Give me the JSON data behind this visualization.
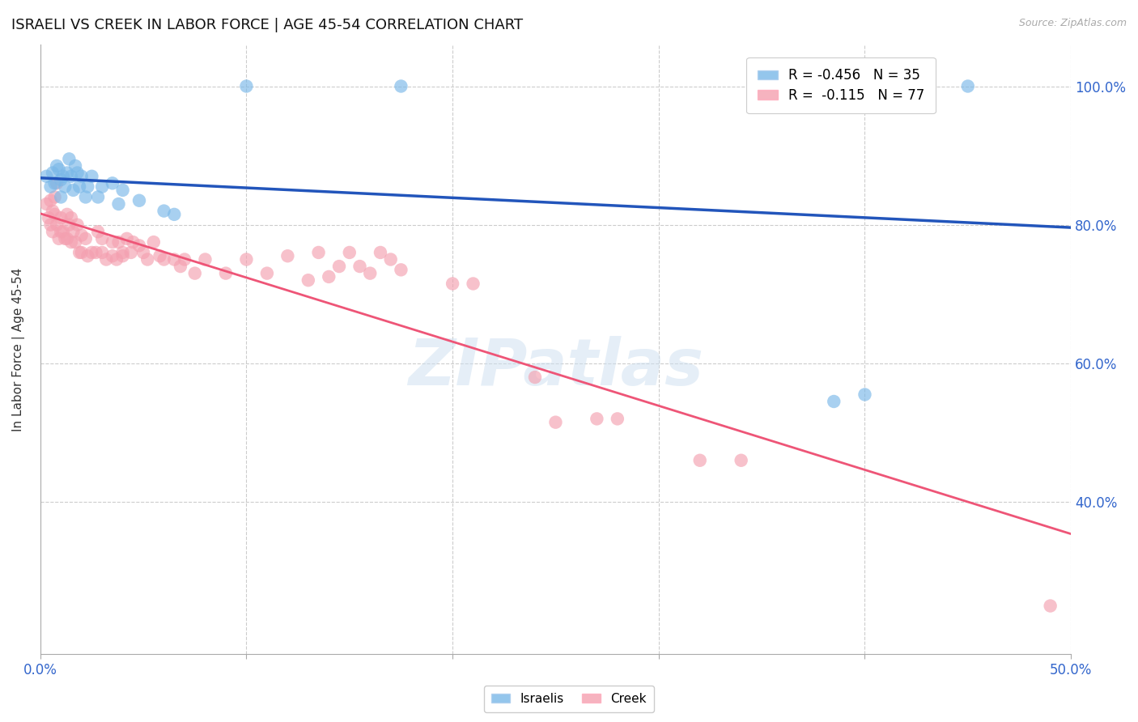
{
  "title": "ISRAELI VS CREEK IN LABOR FORCE | AGE 45-54 CORRELATION CHART",
  "source_text": "Source: ZipAtlas.com",
  "ylabel": "In Labor Force | Age 45-54",
  "xlim": [
    0.0,
    0.5
  ],
  "ylim": [
    0.18,
    1.06
  ],
  "ytick_vals": [
    0.4,
    0.6,
    0.8,
    1.0
  ],
  "ytick_labels": [
    "40.0%",
    "60.0%",
    "80.0%",
    "100.0%"
  ],
  "xtick_vals": [
    0.0,
    0.1,
    0.2,
    0.3,
    0.4,
    0.5
  ],
  "xtick_labels": [
    "0.0%",
    "",
    "",
    "",
    "",
    "50.0%"
  ],
  "grid_color": "#cccccc",
  "background_color": "#ffffff",
  "watermark_text": "ZIPatlas",
  "israeli_color": "#7ab8e8",
  "creek_color": "#f4a0b0",
  "israeli_line_color": "#2255bb",
  "creek_line_color": "#ee5577",
  "israeli_label": "R = -0.456   N = 35",
  "creek_label": "R =  -0.115   N = 77",
  "bottom_label_israeli": "Israelis",
  "bottom_label_creek": "Creek",
  "israeli_points": [
    [
      0.003,
      0.87
    ],
    [
      0.005,
      0.855
    ],
    [
      0.006,
      0.875
    ],
    [
      0.007,
      0.86
    ],
    [
      0.008,
      0.885
    ],
    [
      0.009,
      0.88
    ],
    [
      0.01,
      0.865
    ],
    [
      0.01,
      0.84
    ],
    [
      0.011,
      0.87
    ],
    [
      0.012,
      0.855
    ],
    [
      0.013,
      0.875
    ],
    [
      0.014,
      0.895
    ],
    [
      0.015,
      0.87
    ],
    [
      0.016,
      0.85
    ],
    [
      0.017,
      0.885
    ],
    [
      0.018,
      0.875
    ],
    [
      0.019,
      0.855
    ],
    [
      0.02,
      0.87
    ],
    [
      0.022,
      0.84
    ],
    [
      0.023,
      0.855
    ],
    [
      0.025,
      0.87
    ],
    [
      0.028,
      0.84
    ],
    [
      0.03,
      0.855
    ],
    [
      0.035,
      0.86
    ],
    [
      0.038,
      0.83
    ],
    [
      0.04,
      0.85
    ],
    [
      0.048,
      0.835
    ],
    [
      0.06,
      0.82
    ],
    [
      0.065,
      0.815
    ],
    [
      0.1,
      1.0
    ],
    [
      0.175,
      1.0
    ],
    [
      0.385,
      0.545
    ],
    [
      0.4,
      0.555
    ],
    [
      0.43,
      1.0
    ],
    [
      0.45,
      1.0
    ]
  ],
  "creek_points": [
    [
      0.003,
      0.83
    ],
    [
      0.004,
      0.81
    ],
    [
      0.005,
      0.835
    ],
    [
      0.005,
      0.8
    ],
    [
      0.006,
      0.82
    ],
    [
      0.006,
      0.79
    ],
    [
      0.007,
      0.815
    ],
    [
      0.007,
      0.84
    ],
    [
      0.008,
      0.86
    ],
    [
      0.008,
      0.8
    ],
    [
      0.009,
      0.78
    ],
    [
      0.01,
      0.79
    ],
    [
      0.01,
      0.81
    ],
    [
      0.011,
      0.79
    ],
    [
      0.012,
      0.78
    ],
    [
      0.013,
      0.815
    ],
    [
      0.013,
      0.78
    ],
    [
      0.014,
      0.8
    ],
    [
      0.015,
      0.775
    ],
    [
      0.015,
      0.81
    ],
    [
      0.016,
      0.79
    ],
    [
      0.017,
      0.775
    ],
    [
      0.018,
      0.8
    ],
    [
      0.019,
      0.76
    ],
    [
      0.02,
      0.785
    ],
    [
      0.02,
      0.76
    ],
    [
      0.022,
      0.78
    ],
    [
      0.023,
      0.755
    ],
    [
      0.025,
      0.76
    ],
    [
      0.027,
      0.76
    ],
    [
      0.028,
      0.79
    ],
    [
      0.03,
      0.78
    ],
    [
      0.03,
      0.76
    ],
    [
      0.032,
      0.75
    ],
    [
      0.035,
      0.755
    ],
    [
      0.035,
      0.775
    ],
    [
      0.037,
      0.75
    ],
    [
      0.038,
      0.775
    ],
    [
      0.04,
      0.755
    ],
    [
      0.04,
      0.76
    ],
    [
      0.042,
      0.78
    ],
    [
      0.044,
      0.76
    ],
    [
      0.045,
      0.775
    ],
    [
      0.048,
      0.77
    ],
    [
      0.05,
      0.76
    ],
    [
      0.052,
      0.75
    ],
    [
      0.055,
      0.775
    ],
    [
      0.058,
      0.755
    ],
    [
      0.06,
      0.75
    ],
    [
      0.065,
      0.75
    ],
    [
      0.068,
      0.74
    ],
    [
      0.07,
      0.75
    ],
    [
      0.075,
      0.73
    ],
    [
      0.08,
      0.75
    ],
    [
      0.09,
      0.73
    ],
    [
      0.1,
      0.75
    ],
    [
      0.11,
      0.73
    ],
    [
      0.12,
      0.755
    ],
    [
      0.13,
      0.72
    ],
    [
      0.135,
      0.76
    ],
    [
      0.14,
      0.725
    ],
    [
      0.145,
      0.74
    ],
    [
      0.15,
      0.76
    ],
    [
      0.155,
      0.74
    ],
    [
      0.16,
      0.73
    ],
    [
      0.165,
      0.76
    ],
    [
      0.17,
      0.75
    ],
    [
      0.175,
      0.735
    ],
    [
      0.2,
      0.715
    ],
    [
      0.21,
      0.715
    ],
    [
      0.24,
      0.58
    ],
    [
      0.25,
      0.515
    ],
    [
      0.27,
      0.52
    ],
    [
      0.28,
      0.52
    ],
    [
      0.32,
      0.46
    ],
    [
      0.34,
      0.46
    ],
    [
      0.49,
      0.25
    ]
  ]
}
